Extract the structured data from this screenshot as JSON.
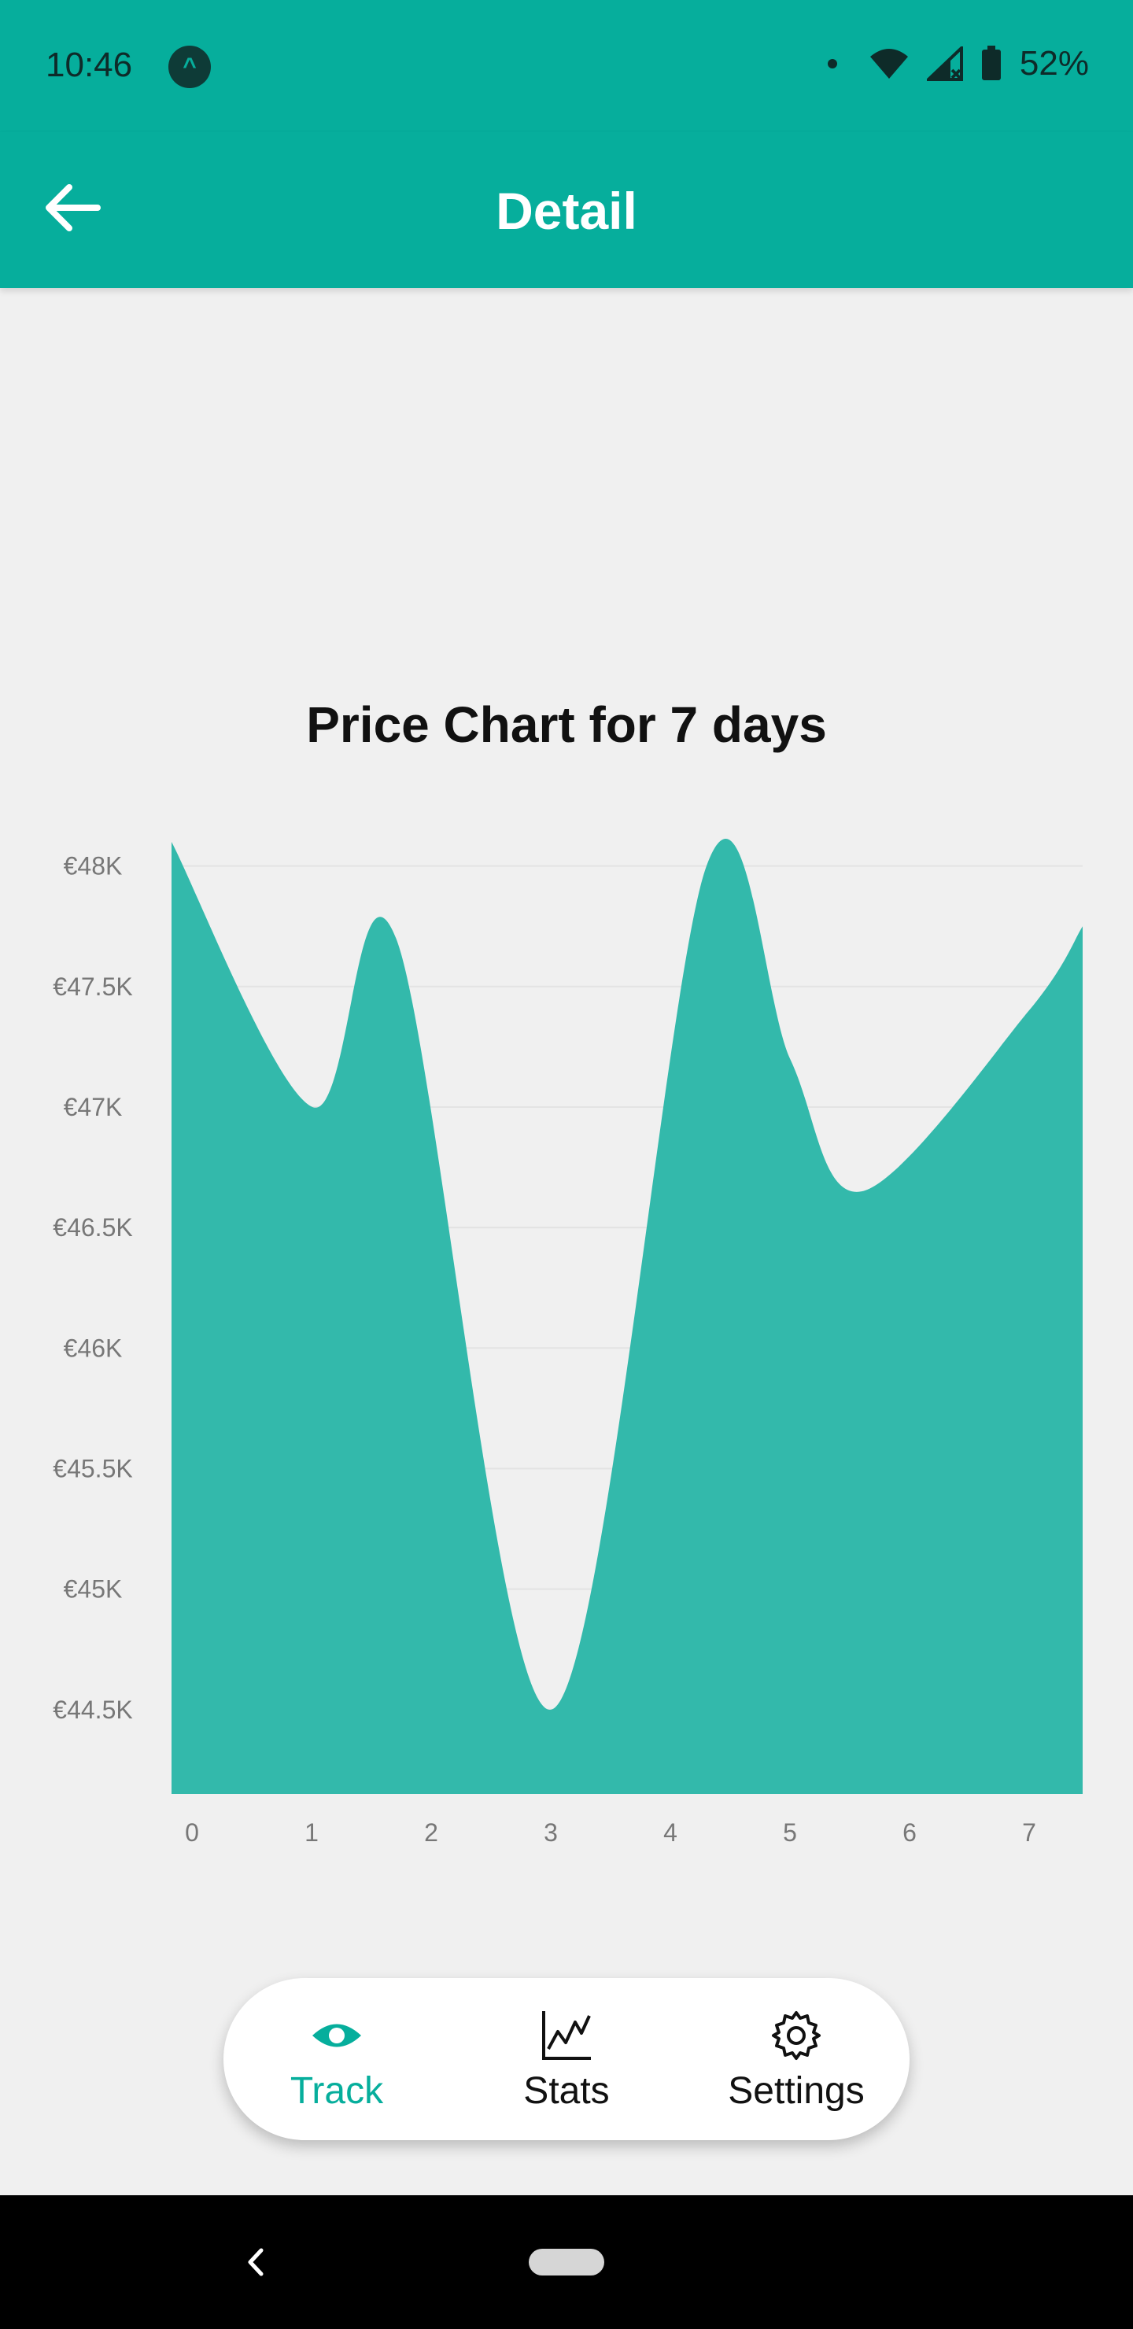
{
  "status_bar": {
    "time": "10:46",
    "battery_percent": "52%",
    "icons": [
      "app-notification-icon",
      "dot-icon",
      "wifi-icon",
      "signal-icon",
      "battery-icon"
    ]
  },
  "app_bar": {
    "title": "Detail",
    "back_icon": "arrow-left-icon"
  },
  "chart_title": "Price Chart for 7 days",
  "chart_data": {
    "type": "area",
    "title": "Price Chart for 7 days",
    "xlabel": "",
    "ylabel": "",
    "x": [
      0,
      1,
      1.7,
      3,
      4.3,
      5,
      5.6,
      7,
      7.5
    ],
    "x_ticks": [
      "0",
      "1",
      "2",
      "3",
      "4",
      "5",
      "6",
      "7"
    ],
    "series": [
      {
        "values": [
          48100,
          47000,
          47700,
          44500,
          48000,
          47200,
          46650,
          47400,
          47750
        ]
      }
    ],
    "y_ticks": [
      "€44.5K",
      "€45K",
      "€45.5K",
      "€46K",
      "€46.5K",
      "€47K",
      "€47.5K",
      "€48K"
    ],
    "y_tick_values": [
      44500,
      45000,
      45500,
      46000,
      46500,
      47000,
      47500,
      48000
    ],
    "ylim": [
      44150,
      48100
    ],
    "xlim": [
      -0.18,
      7.45
    ],
    "grid": true,
    "fill_color": "#33b9ab"
  },
  "bottom_nav": {
    "items": [
      {
        "label": "Track",
        "icon": "eye-icon",
        "active": true
      },
      {
        "label": "Stats",
        "icon": "line-chart-icon",
        "active": false
      },
      {
        "label": "Settings",
        "icon": "gear-icon",
        "active": false
      }
    ],
    "active_color": "#06ae9c"
  },
  "colors": {
    "primary": "#06ae9c",
    "background": "#f0f0f0"
  }
}
